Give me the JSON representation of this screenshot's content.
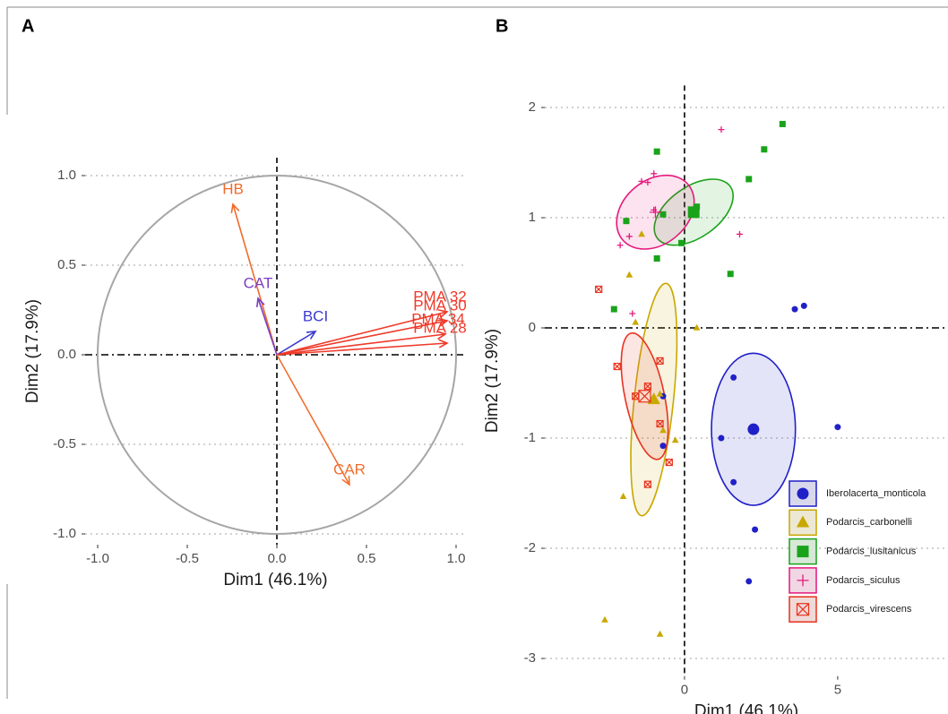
{
  "chart_data": [
    {
      "type": "biplot",
      "title": "A",
      "x_label": "Dim1 (46.1%)",
      "y_label": "Dim2 (17.9%)",
      "categories": [
        "HB",
        "CAT",
        "BCI",
        "PMA 32",
        "PMA 30",
        "PMA 34",
        "PMA 28",
        "CAR"
      ],
      "x": [
        -0.245,
        -0.105,
        0.215,
        0.95,
        0.95,
        0.94,
        0.95,
        0.405
      ],
      "values": [
        0.84,
        0.315,
        0.13,
        0.24,
        0.19,
        0.115,
        0.065,
        -0.725
      ],
      "colors": [
        "#f06a2a",
        "#7b3fc4",
        "#3a3ad0",
        "#ee3a2a",
        "#ee3a2a",
        "#ee3a2a",
        "#ee3a2a",
        "#f07030"
      ],
      "circle_radius": 1,
      "hline": 0,
      "vline": 0,
      "xlim": [
        -1.07,
        1.055
      ],
      "ylim": [
        -1.06,
        1.1
      ],
      "xticks": [
        {
          "value": -1,
          "label": "-1.0"
        },
        {
          "value": -0.5,
          "label": "-0.5"
        },
        {
          "value": 0,
          "label": "0.0"
        },
        {
          "value": 0.5,
          "label": "0.5"
        },
        {
          "value": 1,
          "label": "1.0"
        }
      ],
      "yticks": [
        {
          "value": -1,
          "label": "-1.0"
        },
        {
          "value": -0.5,
          "label": "-0.5"
        },
        {
          "value": 0,
          "label": "0.0"
        },
        {
          "value": 0.5,
          "label": "0.5"
        },
        {
          "value": 1,
          "label": "1.0"
        }
      ],
      "grid": true
    },
    {
      "type": "scatter",
      "title": "B",
      "x_label": "Dim1 (46.1%)",
      "y_label": "Dim2 (17.9%)",
      "xlim": [
        -4.56,
        8.6
      ],
      "ylim": [
        -3.16,
        2.2
      ],
      "xticks": [
        0,
        5
      ],
      "yticks": [
        -3,
        -2,
        -1,
        0,
        1,
        2
      ],
      "hline": 0,
      "vline": 0,
      "grid": true,
      "legend": "bottom-right",
      "series": [
        {
          "name": "Iberolacerta_monticola",
          "color": "#2020c8",
          "shape": "circle",
          "x": [
            3.6,
            3.9,
            1.6,
            1.2,
            5.0,
            -0.7,
            1.6,
            2.3,
            -0.7,
            2.1
          ],
          "values": [
            0.17,
            0.2,
            -0.45,
            -1.0,
            -0.9,
            -0.62,
            -1.4,
            -1.83,
            -1.07,
            -2.3
          ],
          "centroid": [
            2.25,
            -0.92
          ],
          "ellipse": {
            "rx": 1.37,
            "ry": 0.69,
            "angle": 0
          }
        },
        {
          "name": "Podarcis_carbonelli",
          "color": "#c9a800",
          "shape": "triangle",
          "x": [
            -1.4,
            -1.8,
            -1.6,
            0.4,
            -0.7,
            -0.3,
            -2.0,
            -2.6,
            -0.8,
            -0.8
          ],
          "values": [
            0.85,
            0.48,
            0.05,
            0.0,
            -0.93,
            -1.02,
            -1.53,
            -2.65,
            -2.78,
            -0.6
          ],
          "centroid": [
            -1.0,
            -0.65
          ],
          "ellipse": {
            "rx": 0.64,
            "ry": 1.06,
            "angle": 6
          }
        },
        {
          "name": "Podarcis_lusitanicus",
          "color": "#1aa31a",
          "shape": "square",
          "x": [
            -1.9,
            -0.9,
            -0.7,
            -0.9,
            -0.1,
            0.4,
            2.1,
            2.6,
            3.2,
            1.5,
            -2.3
          ],
          "values": [
            0.97,
            1.6,
            1.03,
            0.63,
            0.77,
            1.1,
            1.35,
            1.62,
            1.85,
            0.49,
            0.17
          ],
          "centroid": [
            0.3,
            1.05
          ],
          "ellipse": {
            "rx": 1.46,
            "ry": 0.23,
            "angle": -35
          }
        },
        {
          "name": "Podarcis_siculus",
          "color": "#e6197e",
          "shape": "plus",
          "x": [
            -2.1,
            -1.8,
            -1.4,
            -1.2,
            -1.0,
            -1.0,
            -1.7,
            1.2,
            1.8
          ],
          "values": [
            0.75,
            0.83,
            1.33,
            1.32,
            1.4,
            1.07,
            0.13,
            1.8,
            0.85
          ],
          "centroid": [
            -0.95,
            1.05
          ],
          "ellipse": {
            "rx": 1.4,
            "ry": 0.29,
            "angle": -40
          }
        },
        {
          "name": "Podarcis_virescens",
          "color": "#e8331f",
          "shape": "boxcross",
          "x": [
            -2.8,
            -2.2,
            -1.2,
            -0.8,
            -0.8,
            -0.5,
            -1.2,
            -1.6
          ],
          "values": [
            0.35,
            -0.35,
            -0.53,
            -0.3,
            -0.87,
            -1.22,
            -1.42,
            -0.62
          ],
          "centroid": [
            -1.3,
            -0.62
          ],
          "ellipse": {
            "rx": 0.64,
            "ry": 0.585,
            "angle": -12
          }
        }
      ]
    }
  ]
}
